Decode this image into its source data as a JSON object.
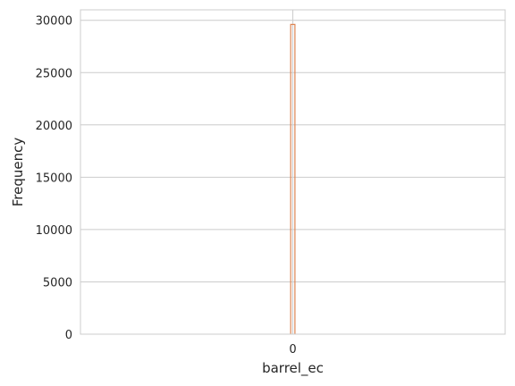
{
  "chart_data": {
    "type": "bar",
    "title": "",
    "xlabel": "barrel_ec",
    "ylabel": "Frequency",
    "categories": [
      "0"
    ],
    "values": [
      29600
    ],
    "x_ticks": [
      0
    ],
    "x_tick_labels": [
      "0"
    ],
    "y_ticks": [
      0,
      5000,
      10000,
      15000,
      20000,
      25000,
      30000
    ],
    "y_tick_labels": [
      "0",
      "5000",
      "10000",
      "15000",
      "20000",
      "25000",
      "30000"
    ],
    "xlim": [
      -0.5,
      0.5
    ],
    "ylim": [
      0,
      31000
    ],
    "grid": true,
    "legend": "none",
    "colors": {
      "bar_edge": "#dd8452",
      "grid": "#cccccc",
      "spine": "#cccccc",
      "text": "#262626"
    }
  }
}
